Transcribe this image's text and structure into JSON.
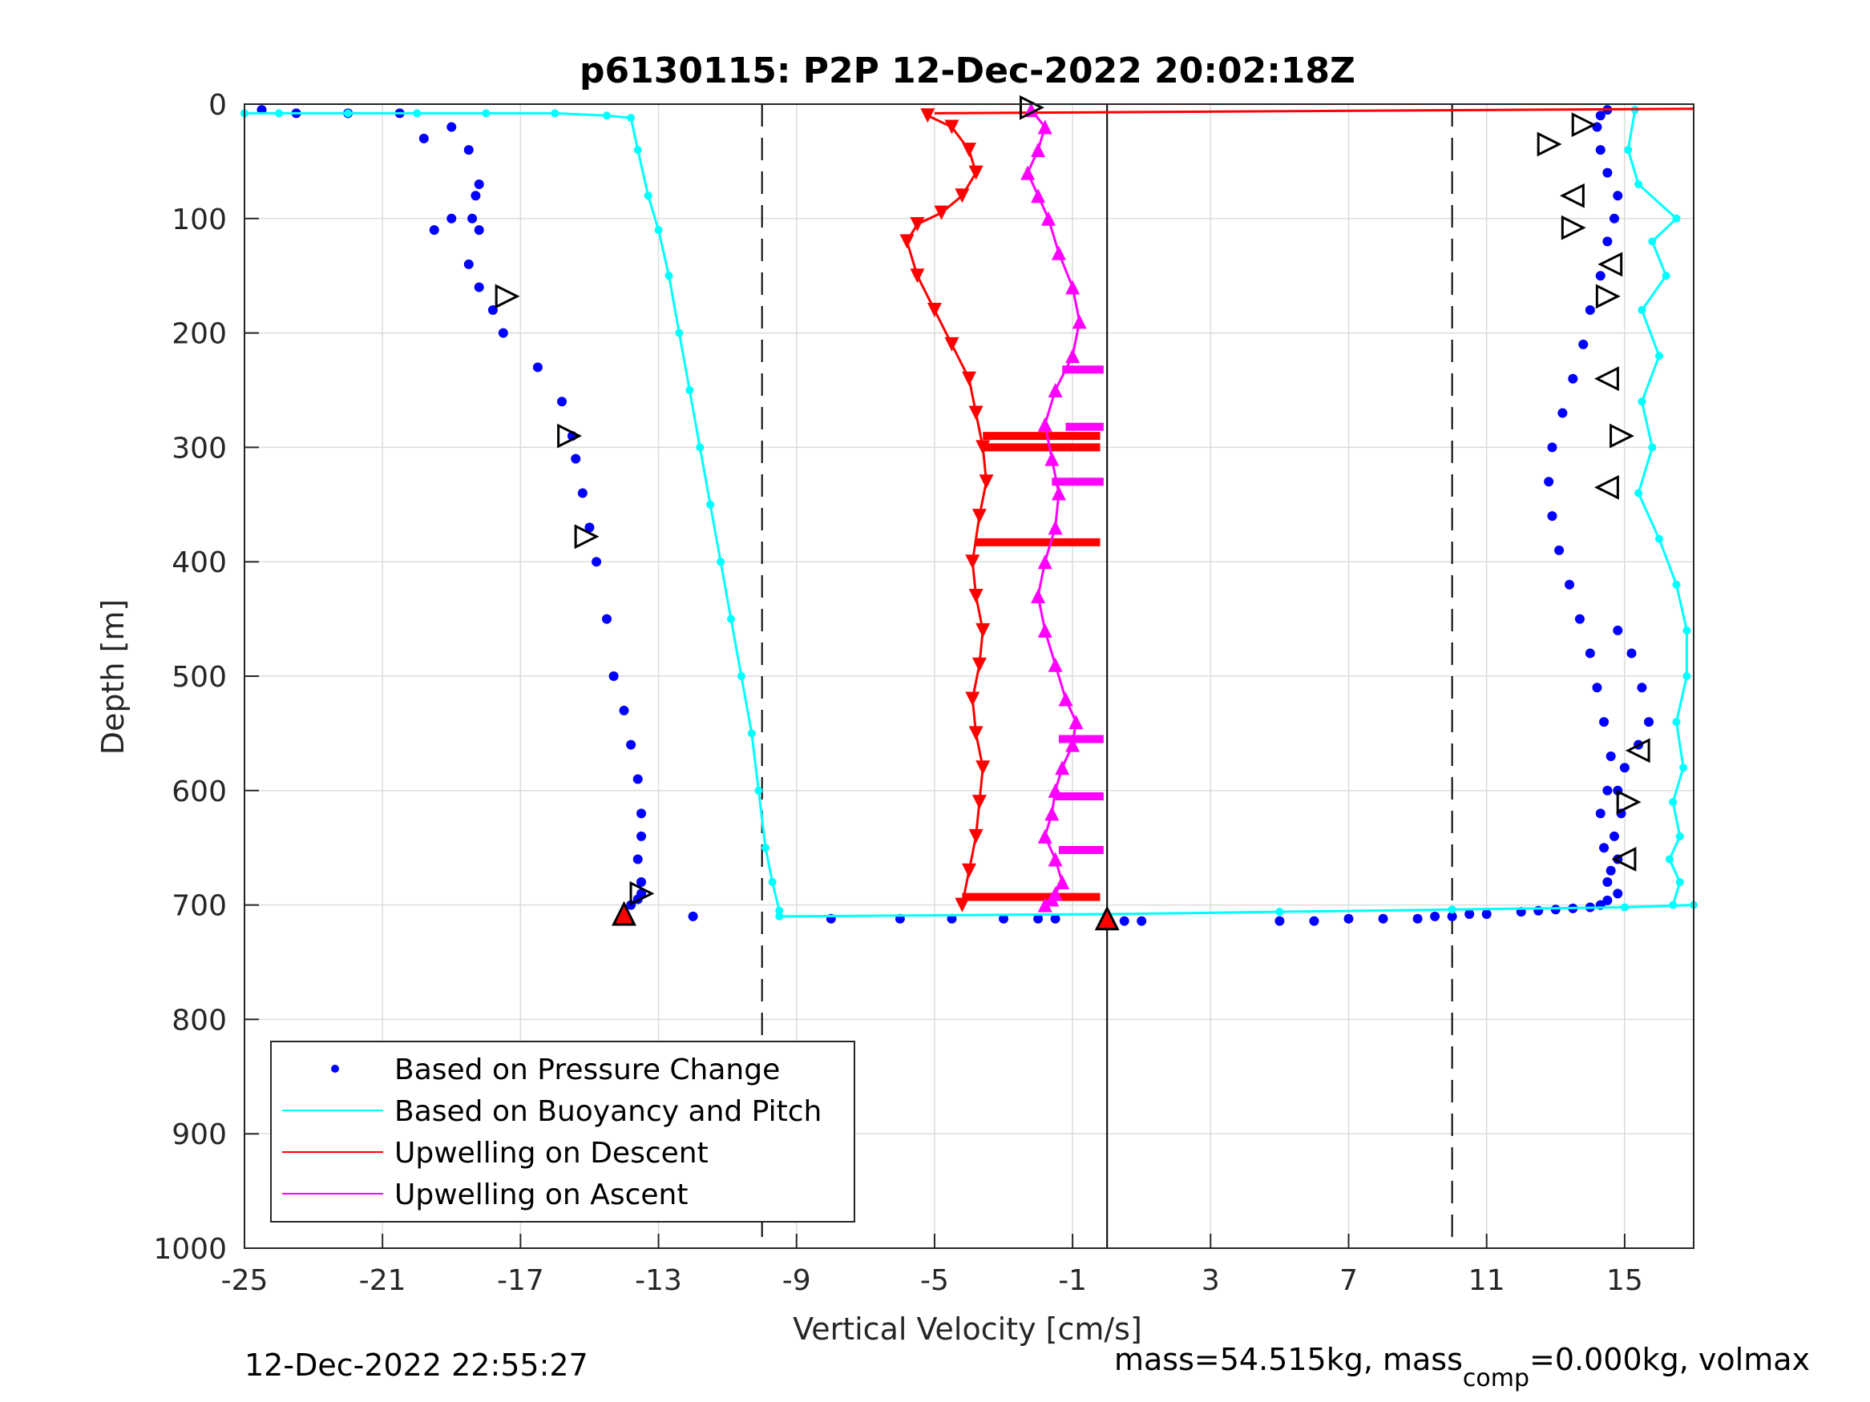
{
  "chart_data": {
    "type": "scatter",
    "title": "p6130115: P2P 12-Dec-2022 20:02:18Z",
    "xlabel": "Vertical Velocity [cm/s]",
    "ylabel": "Depth [m]",
    "xlim": [
      -25,
      17
    ],
    "ylim": [
      0,
      1000
    ],
    "y_reversed": true,
    "grid": true,
    "x_ticks": [
      -25,
      -21,
      -17,
      -13,
      -9,
      -5,
      -1,
      3,
      7,
      11,
      15
    ],
    "y_ticks": [
      0,
      100,
      200,
      300,
      400,
      500,
      600,
      700,
      800,
      900,
      1000
    ],
    "x_tick_labels": [
      "-25",
      "-21",
      "-17",
      "-13",
      "-9",
      "-5",
      "-1",
      "3",
      "7",
      "11",
      "15"
    ],
    "y_tick_labels": [
      "0",
      "100",
      "200",
      "300",
      "400",
      "500",
      "600",
      "700",
      "800",
      "900",
      "1000"
    ],
    "legend_position": "bottom-left",
    "legend": [
      {
        "label": "Based on Pressure Change",
        "color": "#0000ff",
        "marker": "dot"
      },
      {
        "label": "Based on Buoyancy and Pitch",
        "color": "#00ffff",
        "marker": "line"
      },
      {
        "label": "Upwelling on Descent",
        "color": "#ff0000",
        "marker": "line"
      },
      {
        "label": "Upwelling on Ascent",
        "color": "#ff00ff",
        "marker": "line"
      }
    ],
    "reference_lines": [
      {
        "x": -10,
        "style": "dashed",
        "color": "#000000"
      },
      {
        "x": 0,
        "style": "solid",
        "color": "#000000"
      },
      {
        "x": 10,
        "style": "dashed",
        "color": "#000000"
      }
    ],
    "series": [
      {
        "name": "Based on Pressure Change",
        "color": "#0000ff",
        "segments": [
          {
            "x": [
              -24.5,
              -23.5,
              -22,
              -20.5,
              -19.8,
              -19,
              -18.5,
              -18.2,
              -18.3,
              -18.4,
              -18.2,
              -19,
              -19.5,
              -18.5,
              -18.2,
              -17.8,
              -17.5,
              -16.5,
              -15.8,
              -15.5,
              -15.4,
              -15.2,
              -15.0,
              -14.8,
              -14.5,
              -14.3,
              -14.0,
              -13.8,
              -13.6,
              -13.5,
              -13.5,
              -13.6,
              -13.5,
              -13.5,
              -13.6,
              -13.8,
              -14.0
            ],
            "y": [
              5,
              8,
              8,
              8,
              30,
              20,
              40,
              70,
              80,
              100,
              110,
              100,
              110,
              140,
              160,
              180,
              200,
              230,
              260,
              290,
              310,
              340,
              370,
              400,
              450,
              500,
              530,
              560,
              590,
              620,
              640,
              660,
              680,
              690,
              695,
              700,
              710
            ]
          },
          {
            "x": [
              -12,
              -8,
              -6,
              -4.5,
              -3,
              -2,
              -1.5,
              0,
              0.5,
              1,
              5,
              6,
              7,
              8,
              9,
              9.5,
              10,
              10.5,
              11,
              12,
              12.5,
              13,
              13.5,
              14,
              14.3,
              14.5
            ],
            "y": [
              710,
              712,
              712,
              712,
              712,
              712,
              712,
              714,
              714,
              714,
              714,
              714,
              712,
              712,
              712,
              710,
              710,
              708,
              708,
              706,
              705,
              704,
              703,
              702,
              700,
              696
            ]
          },
          {
            "x": [
              14.8,
              14.6,
              14.4,
              14.3,
              14.5,
              14.6,
              14.4,
              14.2,
              14.0,
              13.7,
              13.4,
              13.1,
              12.9,
              12.8,
              12.9,
              13.2,
              13.5,
              13.8,
              14.0,
              14.3,
              14.5,
              14.7,
              14.8,
              14.5,
              14.3,
              14.2,
              14.3,
              14.5,
              14.8,
              15.2,
              15.5,
              15.7,
              15.4,
              15.0,
              14.8,
              14.9,
              14.7,
              14.8,
              14.5
            ],
            "y": [
              690,
              670,
              650,
              620,
              600,
              570,
              540,
              510,
              480,
              450,
              420,
              390,
              360,
              330,
              300,
              270,
              240,
              210,
              180,
              150,
              120,
              100,
              80,
              60,
              40,
              20,
              10,
              5,
              460,
              480,
              510,
              540,
              560,
              580,
              600,
              620,
              640,
              660,
              680
            ]
          }
        ]
      },
      {
        "name": "Based on Buoyancy and Pitch",
        "color": "#00ffff",
        "segments": [
          {
            "x": [
              -25,
              -24,
              -22,
              -20,
              -18,
              -16,
              -14.5,
              -13.8,
              -13.6,
              -13.3,
              -13.0,
              -12.7,
              -12.4,
              -12.1,
              -11.8,
              -11.5,
              -11.2,
              -10.9,
              -10.6,
              -10.3,
              -10.1,
              -9.9,
              -9.7,
              -9.5
            ],
            "y": [
              8,
              8,
              8,
              8,
              8,
              8,
              10,
              12,
              40,
              80,
              110,
              150,
              200,
              250,
              300,
              350,
              400,
              450,
              500,
              550,
              600,
              650,
              680,
              705
            ]
          },
          {
            "x": [
              -9.5,
              0,
              5,
              10,
              15,
              17
            ],
            "y": [
              710,
              708,
              706,
              704,
              702,
              700
            ]
          },
          {
            "x": [
              15.3,
              15.1,
              15.4,
              16.5,
              15.8,
              16.2,
              15.5,
              16.0,
              15.5,
              15.8,
              15.4,
              16.0,
              16.5,
              16.8,
              16.8,
              16.5,
              16.7,
              16.4,
              16.6,
              16.3,
              16.6,
              16.4
            ],
            "y": [
              5,
              40,
              70,
              100,
              120,
              150,
              180,
              220,
              260,
              300,
              340,
              380,
              420,
              460,
              500,
              540,
              580,
              610,
              640,
              660,
              680,
              700
            ]
          }
        ]
      },
      {
        "name": "Upwelling on Descent",
        "color": "#ff0000",
        "segments": [
          {
            "x": [
              -5.2,
              -4.5,
              -4.0,
              -3.8,
              -4.2,
              -4.8,
              -5.5,
              -5.8,
              -5.5,
              -5.0,
              -4.5,
              -4.0,
              -3.8,
              -3.6,
              -3.5,
              -3.7,
              -3.9,
              -3.8,
              -3.6,
              -3.7,
              -3.9,
              -3.8,
              -3.6,
              -3.7,
              -3.8,
              -4.0,
              -4.2
            ],
            "y": [
              10,
              20,
              40,
              60,
              80,
              95,
              105,
              120,
              150,
              180,
              210,
              240,
              270,
              300,
              330,
              360,
              400,
              430,
              460,
              490,
              520,
              550,
              580,
              610,
              640,
              670,
              700
            ]
          },
          {
            "x": [
              -3.6,
              -0.2
            ],
            "y": [
              290,
              290
            ]
          },
          {
            "x": [
              -3.6,
              -0.2
            ],
            "y": [
              300,
              300
            ]
          },
          {
            "x": [
              -3.8,
              -0.2
            ],
            "y": [
              383,
              383
            ]
          },
          {
            "x": [
              -4.2,
              -0.2
            ],
            "y": [
              693,
              693
            ]
          },
          {
            "x": [
              -5.0,
              17
            ],
            "y": [
              8,
              4
            ]
          }
        ]
      },
      {
        "name": "Upwelling on Ascent",
        "color": "#ff00ff",
        "segments": [
          {
            "x": [
              -2.2,
              -1.8,
              -2.0,
              -2.3,
              -2.0,
              -1.7,
              -1.4,
              -1.0,
              -0.8,
              -1.0,
              -1.5,
              -1.8,
              -1.6,
              -1.4,
              -1.5,
              -1.8,
              -2.0,
              -1.8,
              -1.5,
              -1.2,
              -0.9,
              -1.0,
              -1.3,
              -1.5,
              -1.6,
              -1.8,
              -1.5,
              -1.3,
              -1.5,
              -1.6,
              -1.8
            ],
            "y": [
              5,
              20,
              40,
              60,
              80,
              100,
              130,
              160,
              190,
              220,
              250,
              280,
              310,
              340,
              370,
              400,
              430,
              460,
              490,
              520,
              540,
              560,
              580,
              600,
              620,
              640,
              660,
              680,
              690,
              695,
              700
            ]
          },
          {
            "x": [
              -1.3,
              -0.1
            ],
            "y": [
              232,
              232
            ]
          },
          {
            "x": [
              -1.2,
              -0.1
            ],
            "y": [
              282,
              282
            ]
          },
          {
            "x": [
              -1.6,
              -0.1
            ],
            "y": [
              330,
              330
            ]
          },
          {
            "x": [
              -1.4,
              -0.1
            ],
            "y": [
              555,
              555
            ]
          },
          {
            "x": [
              -1.5,
              -0.1
            ],
            "y": [
              605,
              605
            ]
          },
          {
            "x": [
              -1.4,
              -0.1
            ],
            "y": [
              652,
              652
            ]
          }
        ]
      }
    ],
    "markers": [
      {
        "type": "triangle-right",
        "points": [
          [
            -2.2,
            3
          ],
          [
            -17.4,
            168
          ],
          [
            -15.6,
            290
          ],
          [
            -15.1,
            378
          ],
          [
            -13.5,
            690
          ],
          [
            12.8,
            35
          ],
          [
            13.5,
            108
          ],
          [
            14.5,
            168
          ],
          [
            14.9,
            290
          ],
          [
            15.1,
            610
          ],
          [
            13.8,
            18
          ]
        ]
      },
      {
        "type": "triangle-left",
        "points": [
          [
            13.5,
            80
          ],
          [
            14.6,
            140
          ],
          [
            14.5,
            240
          ],
          [
            14.5,
            335
          ],
          [
            15.4,
            565
          ],
          [
            15.0,
            660
          ]
        ]
      },
      {
        "type": "triangle-up",
        "points": [
          [
            -14.0,
            708
          ],
          [
            0,
            712
          ]
        ]
      }
    ]
  },
  "footer": {
    "timestamp": "12-Dec-2022 22:55:27",
    "mass_text_prefix": "mass=54.515kg, mass",
    "mass_text_sub": "comp",
    "mass_text_suffix": "=0.000kg, volmax"
  }
}
